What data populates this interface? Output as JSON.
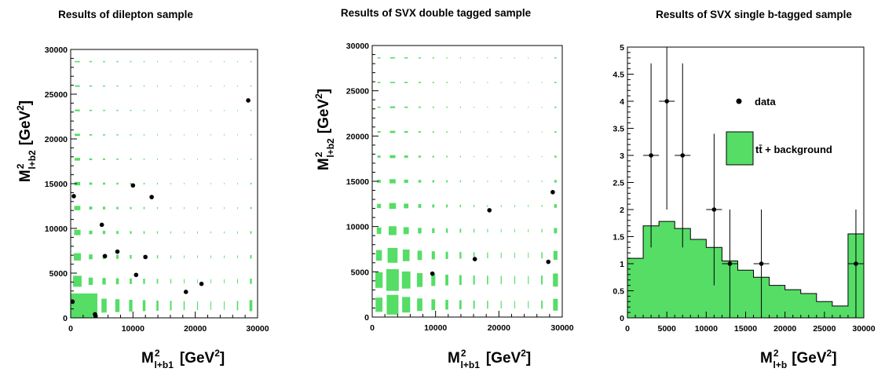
{
  "chart_data": [
    {
      "type": "scatter",
      "title": "Results of dilepton sample",
      "xlabel": "M^2_l+b1 [GeV^2]",
      "ylabel": "M^2_l+b2 [GeV^2]",
      "xlim": [
        0,
        30000
      ],
      "ylim": [
        0,
        30000
      ],
      "xticks": [
        0,
        10000,
        20000,
        30000
      ],
      "yticks": [
        0,
        5000,
        10000,
        15000,
        20000,
        25000,
        30000
      ],
      "grid": false,
      "points": [
        {
          "x": 300,
          "y": 1800
        },
        {
          "x": 500,
          "y": 13600
        },
        {
          "x": 3900,
          "y": 400
        },
        {
          "x": 4000,
          "y": 200
        },
        {
          "x": 5000,
          "y": 10400
        },
        {
          "x": 5500,
          "y": 6900
        },
        {
          "x": 7500,
          "y": 7400
        },
        {
          "x": 10000,
          "y": 14800
        },
        {
          "x": 10500,
          "y": 4800
        },
        {
          "x": 12000,
          "y": 6800
        },
        {
          "x": 13000,
          "y": 13500
        },
        {
          "x": 18500,
          "y": 2900
        },
        {
          "x": 21000,
          "y": 3800
        },
        {
          "x": 28500,
          "y": 24300
        }
      ],
      "box_heights": [
        0.95,
        0.45,
        0.3,
        0.22,
        0.18,
        0.14,
        0.11,
        0.09,
        0.07,
        0.06,
        0.05
      ],
      "box_widths": [
        1.0,
        0.5,
        0.4,
        0.33,
        0.26,
        0.21,
        0.16,
        0.12,
        0.09,
        0.07,
        0.06,
        0.06,
        0.1,
        0.22
      ],
      "box_color": "#55dd66"
    },
    {
      "type": "scatter",
      "title": "Results of SVX double tagged sample",
      "xlabel": "M^2_l+b1 [GeV^2]",
      "ylabel": "M^2_l+b2 [GeV^2]",
      "xlim": [
        0,
        30000
      ],
      "ylim": [
        0,
        30000
      ],
      "xticks": [
        0,
        10000,
        20000,
        30000
      ],
      "yticks": [
        0,
        5000,
        10000,
        15000,
        20000,
        25000,
        30000
      ],
      "grid": false,
      "points": [
        {
          "x": 9500,
          "y": 4800
        },
        {
          "x": 16200,
          "y": 6400
        },
        {
          "x": 18500,
          "y": 11800
        },
        {
          "x": 27800,
          "y": 6100
        },
        {
          "x": 28500,
          "y": 13800
        }
      ],
      "box_heights": [
        0.8,
        0.88,
        0.6,
        0.36,
        0.24,
        0.17,
        0.12,
        0.09,
        0.07,
        0.05,
        0.04
      ],
      "box_widths": [
        0.58,
        1.0,
        0.68,
        0.45,
        0.32,
        0.24,
        0.18,
        0.13,
        0.1,
        0.08,
        0.07,
        0.07,
        0.12,
        0.4
      ],
      "box_color": "#55dd66"
    },
    {
      "type": "bar",
      "title": "Results of SVX single b-tagged sample",
      "xlabel": "M^2_l+b [GeV^2]",
      "ylabel": "",
      "xlim": [
        0,
        30000
      ],
      "ylim": [
        0,
        5
      ],
      "xticks": [
        0,
        5000,
        10000,
        15000,
        20000,
        25000,
        30000
      ],
      "yticks": [
        0,
        0.5,
        1,
        1.5,
        2,
        2.5,
        3,
        3.5,
        4,
        4.5,
        5
      ],
      "ytick_labels": [
        "0",
        "0.5",
        "1",
        "1.5",
        "2",
        "2.5",
        "3",
        "3.5",
        "4",
        "4.5",
        "5"
      ],
      "bin_edges": [
        0,
        2000,
        4000,
        6000,
        8000,
        10000,
        12000,
        14000,
        16000,
        18000,
        20000,
        22000,
        24000,
        26000,
        28000,
        30000
      ],
      "series": [
        {
          "name": "tt̄ + background",
          "values": [
            1.1,
            1.7,
            1.78,
            1.65,
            1.45,
            1.3,
            1.05,
            0.88,
            0.75,
            0.6,
            0.52,
            0.45,
            0.3,
            0.22,
            1.55
          ]
        }
      ],
      "data_points": [
        {
          "x": 3000,
          "y": 3,
          "xerr": 1000,
          "yerr_lo": 1.7,
          "yerr_hi": 1.7
        },
        {
          "x": 5000,
          "y": 4,
          "xerr": 1000,
          "yerr_lo": 2.0,
          "yerr_hi": 2.0
        },
        {
          "x": 7000,
          "y": 3,
          "xerr": 1000,
          "yerr_lo": 1.7,
          "yerr_hi": 1.7
        },
        {
          "x": 11000,
          "y": 2,
          "xerr": 1000,
          "yerr_lo": 1.4,
          "yerr_hi": 1.4
        },
        {
          "x": 13000,
          "y": 1,
          "xerr": 1000,
          "yerr_lo": 1.0,
          "yerr_hi": 1.0
        },
        {
          "x": 17000,
          "y": 1,
          "xerr": 1000,
          "yerr_lo": 1.0,
          "yerr_hi": 1.0
        },
        {
          "x": 29000,
          "y": 1,
          "xerr": 1000,
          "yerr_lo": 1.0,
          "yerr_hi": 1.0
        }
      ],
      "legend": {
        "data_label": "data",
        "mc_label": "tt̄ + background",
        "placement": "upper-right"
      },
      "fill_color": "#55dd66"
    }
  ]
}
